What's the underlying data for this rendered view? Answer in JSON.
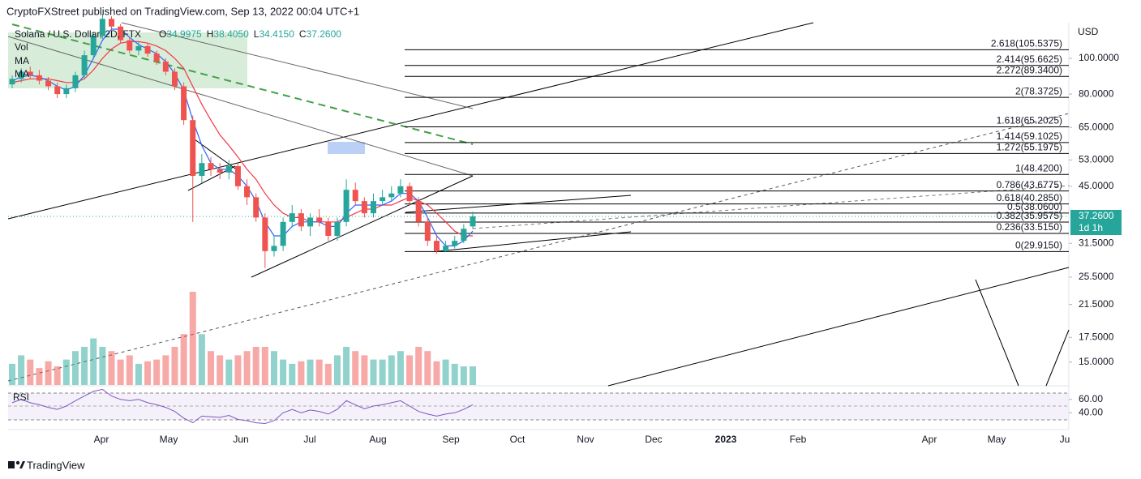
{
  "chart_data": {
    "type": "candlestick",
    "header": "CryptoFXStreet published on TradingView.com, Sep 13, 2022 00:04 UTC+1",
    "title": "Solana / U.S. Dollar, 2D, FTX",
    "ohlc": [
      {
        "key": "O",
        "value": "34.9975"
      },
      {
        "key": "H",
        "value": "38.4050"
      },
      {
        "key": "L",
        "value": "34.4150"
      },
      {
        "key": "C",
        "value": "37.2600"
      }
    ],
    "indicators": [
      "Vol",
      "MA",
      "MA"
    ],
    "currency": "USD",
    "last_price_label": "37.2600",
    "countdown": "1d 1h",
    "footer": "TradingView",
    "log_scale": true,
    "ylim": [
      13,
      144
    ],
    "yticks": [
      {
        "value": 100,
        "label": "100.0000"
      },
      {
        "value": 80,
        "label": "80.0000"
      },
      {
        "value": 65,
        "label": "65.0000"
      },
      {
        "value": 53,
        "label": "53.0000"
      },
      {
        "value": 45,
        "label": "45.0000"
      },
      {
        "value": 31.5,
        "label": "31.5000"
      },
      {
        "value": 25.5,
        "label": "25.5000"
      },
      {
        "value": 21.5,
        "label": "21.5000"
      },
      {
        "value": 17.5,
        "label": "17.5000"
      },
      {
        "value": 15,
        "label": "15.0000"
      }
    ],
    "month_labels": [
      "Apr",
      "May",
      "Jun",
      "Jul",
      "Aug",
      "Sep",
      "Oct",
      "Nov",
      "Dec",
      "2023",
      "Feb",
      "Apr",
      "May",
      "Ju"
    ],
    "up_color": "#26a69a",
    "down_color": "#ef5350",
    "open": [
      85,
      88,
      92,
      90,
      87,
      84,
      80,
      83,
      90,
      102,
      115,
      128,
      122,
      112,
      105,
      108,
      103,
      98,
      92,
      84,
      68,
      48,
      52,
      50,
      49,
      51,
      45,
      42,
      37,
      30,
      31,
      36,
      38,
      35,
      37,
      36,
      33,
      36,
      44,
      41,
      38,
      41,
      42,
      43,
      45,
      41,
      36,
      32,
      30,
      31,
      32,
      34.9975
    ],
    "high": [
      90,
      94,
      95,
      93,
      89,
      86,
      85,
      92,
      105,
      118,
      132,
      130,
      124,
      114,
      111,
      110,
      105,
      100,
      94,
      86,
      70,
      55,
      54,
      52,
      53,
      52,
      47,
      43,
      38,
      33,
      37,
      40,
      39,
      38,
      39,
      37,
      37,
      47,
      46,
      42,
      43,
      44,
      45,
      47,
      46,
      42,
      37,
      33,
      32,
      33,
      35.5,
      38.405
    ],
    "low": [
      83,
      86,
      88,
      85,
      82,
      78,
      78,
      81,
      88,
      100,
      113,
      120,
      110,
      103,
      102,
      101,
      96,
      90,
      82,
      66,
      36,
      46,
      48,
      47,
      47,
      44,
      40,
      36,
      27,
      29,
      30,
      35,
      34,
      33,
      35,
      32,
      32,
      35,
      40,
      37,
      37,
      40,
      41,
      42,
      40,
      35,
      31,
      29.5,
      29.9,
      30.5,
      31.5,
      34.415
    ],
    "close": [
      88,
      92,
      90,
      87,
      84,
      80,
      83,
      90,
      102,
      115,
      128,
      122,
      112,
      105,
      108,
      103,
      98,
      92,
      84,
      68,
      48,
      52,
      50,
      49,
      51,
      45,
      42,
      37,
      30,
      31,
      36,
      38,
      35,
      37,
      36,
      33,
      36,
      44,
      41,
      38,
      41,
      42,
      43,
      45,
      41,
      36,
      32,
      30,
      31,
      32,
      34.5,
      37.26
    ],
    "volume": [
      25,
      35,
      30,
      20,
      28,
      22,
      30,
      40,
      45,
      55,
      45,
      40,
      30,
      35,
      25,
      28,
      30,
      35,
      45,
      60,
      110,
      60,
      40,
      35,
      30,
      35,
      40,
      45,
      45,
      40,
      30,
      25,
      28,
      30,
      30,
      25,
      35,
      45,
      40,
      35,
      30,
      30,
      35,
      40,
      35,
      45,
      40,
      28,
      30,
      25,
      22,
      22
    ],
    "ma_fast": {
      "color": "#2962ff",
      "values": [
        87,
        89,
        90,
        89,
        87,
        84,
        82,
        84,
        90,
        100,
        112,
        120,
        120,
        114,
        109,
        106,
        103,
        98,
        91,
        82,
        68,
        58,
        52,
        50,
        50,
        48,
        45,
        41,
        36,
        33,
        33,
        35,
        36,
        36,
        36,
        35,
        35,
        38,
        40,
        40,
        40,
        40,
        41,
        43,
        43,
        41,
        37,
        33,
        31,
        31,
        32,
        34
      ]
    },
    "ma_slow": {
      "color": "#f23645",
      "values": [
        86,
        87,
        88,
        88,
        88,
        87,
        86,
        86,
        88,
        93,
        100,
        106,
        110,
        111,
        111,
        110,
        108,
        105,
        100,
        94,
        84,
        75,
        68,
        62,
        58,
        54,
        50,
        47,
        43,
        40,
        38,
        37,
        37,
        36,
        36,
        36,
        36,
        37,
        38,
        39,
        39,
        40,
        40,
        41,
        42,
        41,
        40,
        38,
        36,
        34,
        33,
        33
      ]
    },
    "rsi": {
      "name": "RSI",
      "color": "#7e57c2",
      "yticks": [
        {
          "value": 60,
          "label": "60.00"
        },
        {
          "value": 40,
          "label": "40.00"
        }
      ],
      "values": [
        55,
        60,
        55,
        52,
        48,
        45,
        50,
        58,
        65,
        72,
        75,
        65,
        60,
        58,
        60,
        55,
        52,
        48,
        42,
        32,
        25,
        35,
        34,
        33,
        36,
        30,
        28,
        25,
        24,
        28,
        40,
        45,
        40,
        44,
        42,
        38,
        45,
        58,
        52,
        46,
        50,
        52,
        55,
        58,
        50,
        42,
        38,
        35,
        38,
        40,
        45,
        52
      ]
    },
    "fib": [
      {
        "label": "2.618(105.5375)",
        "value": 105.5375
      },
      {
        "label": "2.414(95.6625)",
        "value": 95.6625
      },
      {
        "label": "2.272(89.3400)",
        "value": 89.34
      },
      {
        "label": "2(78.3725)",
        "value": 78.3725
      },
      {
        "label": "1.618(65.2025)",
        "value": 65.2025
      },
      {
        "label": "1.414(59.1025)",
        "value": 59.1025
      },
      {
        "label": "1.272(55.1975)",
        "value": 55.1975
      },
      {
        "label": "1(48.4200)",
        "value": 48.42
      },
      {
        "label": "0.786(43.6775)",
        "value": 43.6775
      },
      {
        "label": "0.618(40.2850)",
        "value": 40.285
      },
      {
        "label": "0.5(38.0600)",
        "value": 38.06
      },
      {
        "label": "0.382(35.9575)",
        "value": 35.9575
      },
      {
        "label": "0.236(33.5150)",
        "value": 33.515
      },
      {
        "label": "0(29.9150)",
        "value": 29.915
      }
    ]
  }
}
